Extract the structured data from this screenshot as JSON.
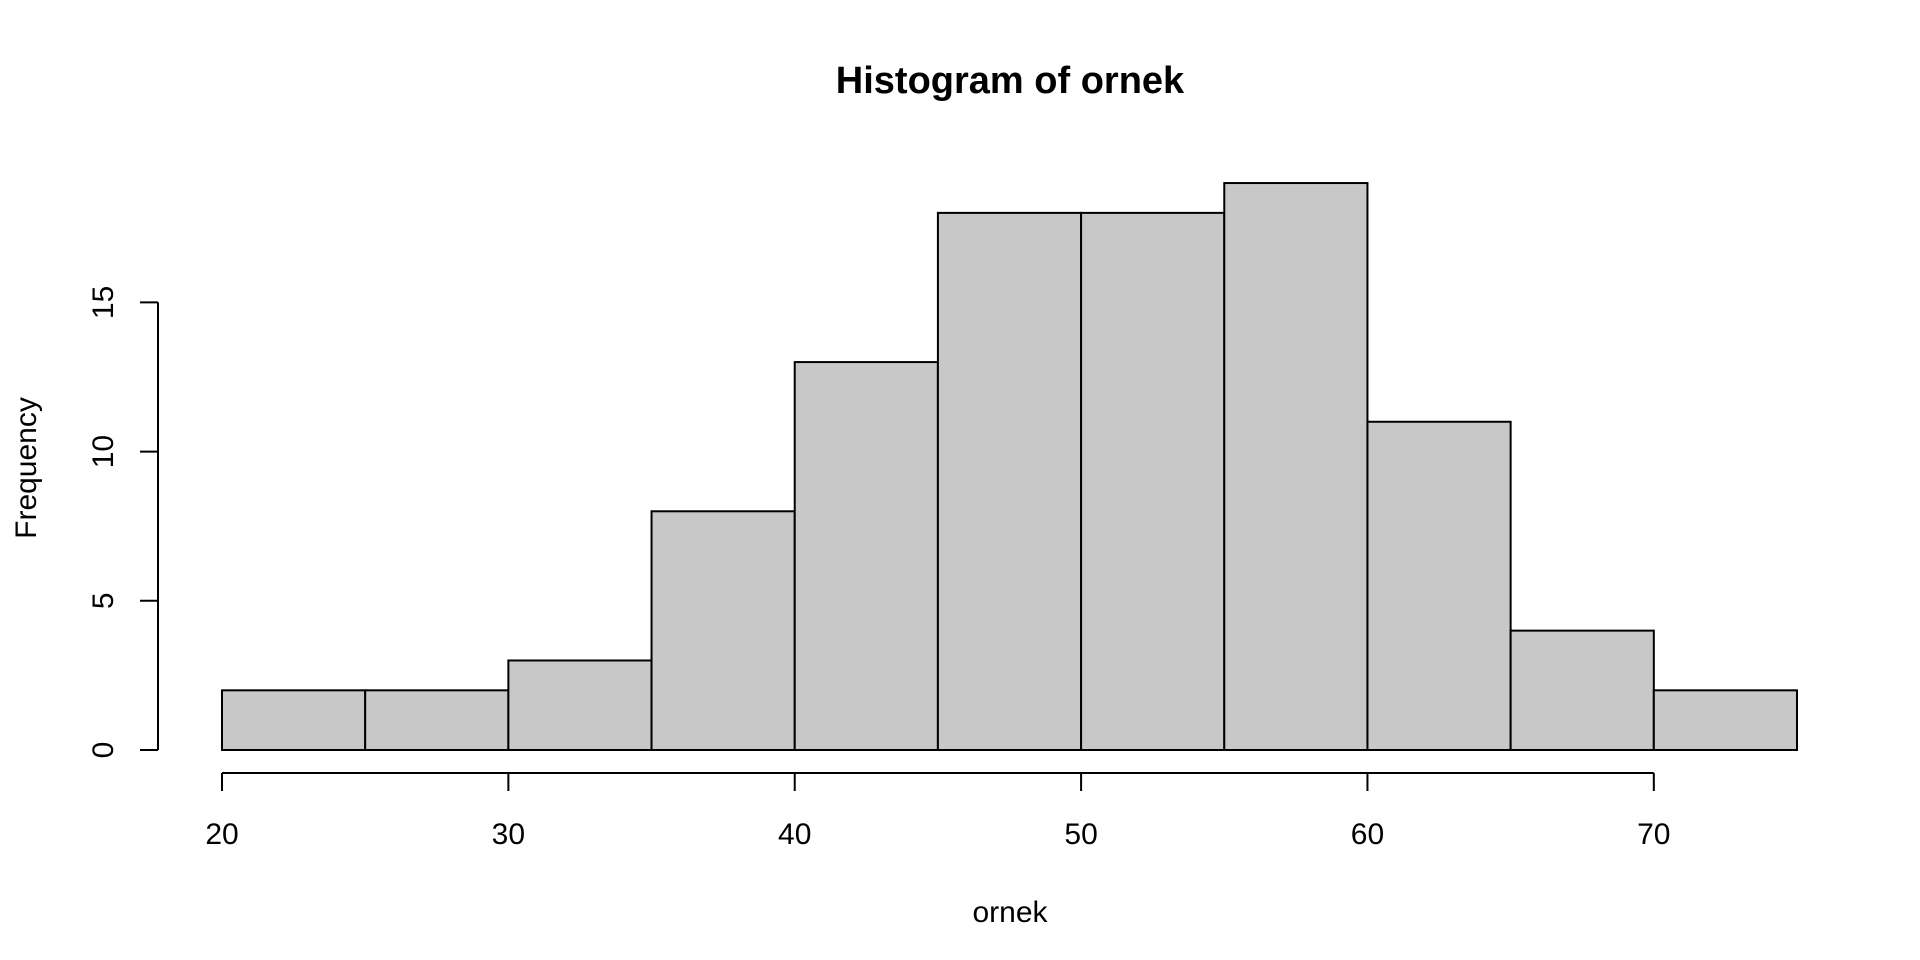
{
  "chart_data": {
    "type": "bar",
    "title": "Histogram of ornek",
    "xlabel": "ornek",
    "ylabel": "Frequency",
    "bins": [
      {
        "start": 20,
        "end": 25,
        "count": 2
      },
      {
        "start": 25,
        "end": 30,
        "count": 2
      },
      {
        "start": 30,
        "end": 35,
        "count": 3
      },
      {
        "start": 35,
        "end": 40,
        "count": 8
      },
      {
        "start": 40,
        "end": 45,
        "count": 13
      },
      {
        "start": 45,
        "end": 50,
        "count": 18
      },
      {
        "start": 50,
        "end": 55,
        "count": 18
      },
      {
        "start": 55,
        "end": 60,
        "count": 19
      },
      {
        "start": 60,
        "end": 65,
        "count": 11
      },
      {
        "start": 65,
        "end": 70,
        "count": 4
      },
      {
        "start": 70,
        "end": 75,
        "count": 2
      }
    ],
    "xticks": [
      20,
      30,
      40,
      50,
      60,
      70
    ],
    "yticks": [
      0,
      5,
      10,
      15
    ],
    "xlim": [
      20,
      75
    ],
    "ylim": [
      0,
      19
    ],
    "grid": false,
    "bar_color": "#c8c8c8",
    "edge_color": "#000000"
  }
}
